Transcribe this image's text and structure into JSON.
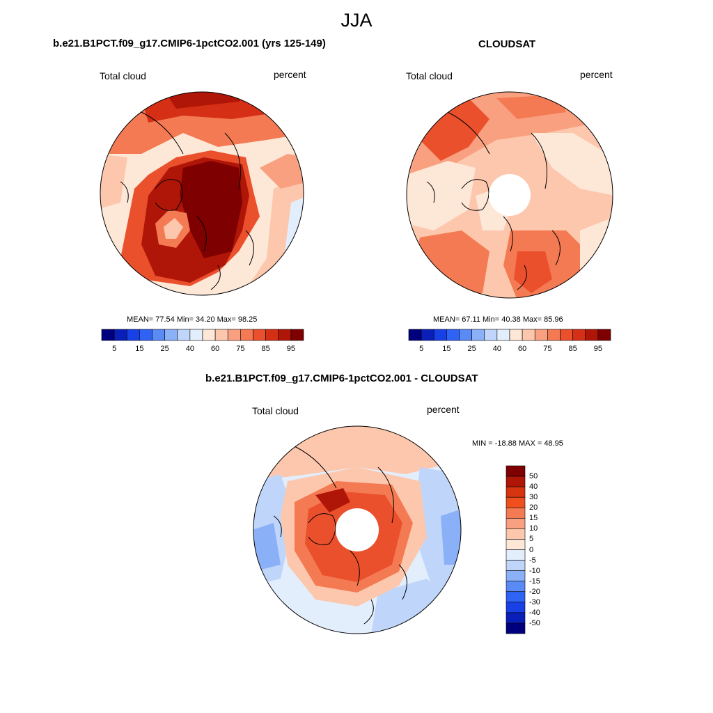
{
  "figure": {
    "season": "JJA"
  },
  "panels": {
    "model": {
      "title": "b.e21.B1PCT.f09_g17.CMIP6-1pctCO2.001 (yrs 125-149)",
      "left_label": "Total cloud",
      "right_label": "percent",
      "stats": "MEAN=  77.54  Min=  34.20  Max=  98.25",
      "colorbar_ticks": [
        "5",
        "15",
        "25",
        "40",
        "60",
        "75",
        "85",
        "95"
      ]
    },
    "obs": {
      "title": "CLOUDSAT",
      "left_label": "Total cloud",
      "right_label": "percent",
      "stats": "MEAN=  67.11  Min=  40.38  Max=  85.96",
      "colorbar_ticks": [
        "5",
        "15",
        "25",
        "40",
        "60",
        "75",
        "85",
        "95"
      ]
    },
    "diff": {
      "title": "b.e21.B1PCT.f09_g17.CMIP6-1pctCO2.001 - CLOUDSAT",
      "left_label": "Total cloud",
      "right_label": "percent",
      "stats": "MIN = -18.88 MAX =  48.95",
      "colorbar_ticks": [
        "50",
        "40",
        "30",
        "20",
        "15",
        "10",
        "5",
        "0",
        "-5",
        "-10",
        "-15",
        "-20",
        "-30",
        "-40",
        "-50"
      ]
    }
  },
  "colors": {
    "abs_scale": [
      "#00007f",
      "#0a1fb8",
      "#1740e6",
      "#2e63f5",
      "#5a8af5",
      "#8ab0f7",
      "#c0d5fa",
      "#e3eefc",
      "#fde7d7",
      "#fcc7ac",
      "#f9a080",
      "#f47a53",
      "#eb502d",
      "#d52f15",
      "#b01608",
      "#7f0000"
    ],
    "diff_scale": [
      "#7f0000",
      "#b01608",
      "#d7350f",
      "#ef4f1c",
      "#f47a53",
      "#f9a080",
      "#fcc7ac",
      "#fde7d7",
      "#e3eefc",
      "#c0d5fa",
      "#8ab0f7",
      "#5a8af5",
      "#2e63f5",
      "#1740e6",
      "#0a1fb8",
      "#00007f"
    ],
    "land_line": "#000000",
    "missing": "#ffffff"
  }
}
